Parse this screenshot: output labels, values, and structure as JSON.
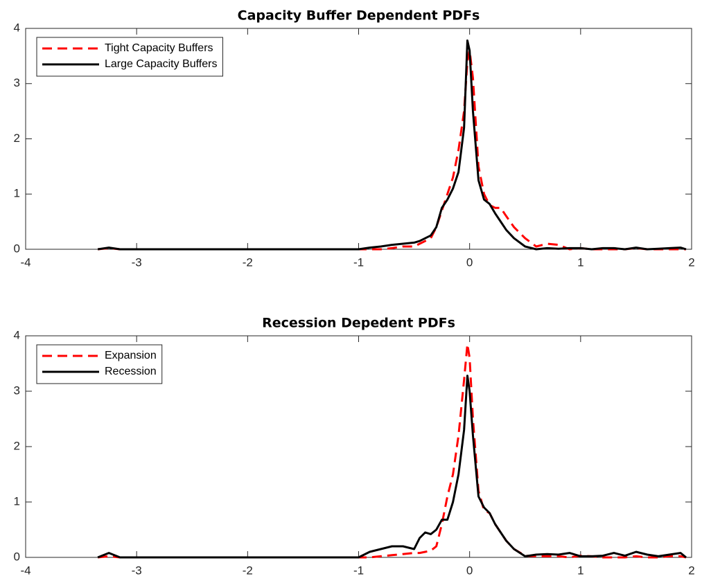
{
  "chart_data": [
    {
      "type": "line",
      "title": "Capacity Buffer Dependent PDFs",
      "x": [
        -3.35,
        -3.25,
        -3.15,
        -1.0,
        -0.9,
        -0.8,
        -0.7,
        -0.6,
        -0.5,
        -0.45,
        -0.4,
        -0.35,
        -0.3,
        -0.25,
        -0.2,
        -0.15,
        -0.1,
        -0.05,
        -0.02,
        0.0,
        0.03,
        0.08,
        0.13,
        0.18,
        0.23,
        0.28,
        0.33,
        0.4,
        0.5,
        0.6,
        0.7,
        0.8,
        0.9,
        1.0,
        1.1,
        1.2,
        1.3,
        1.4,
        1.5,
        1.6,
        1.7,
        1.8,
        1.9,
        1.95
      ],
      "series": [
        {
          "name": "Tight Capacity Buffers",
          "color": "#ff0000",
          "style": "dashed",
          "values": [
            0,
            0.02,
            0,
            0,
            0,
            0,
            0.02,
            0.05,
            0.05,
            0.1,
            0.15,
            0.2,
            0.4,
            0.7,
            1.0,
            1.3,
            1.8,
            2.5,
            3.4,
            3.6,
            3.1,
            1.5,
            1.0,
            0.8,
            0.75,
            0.75,
            0.6,
            0.4,
            0.2,
            0.05,
            0.1,
            0.08,
            0,
            0.02,
            0,
            0,
            0,
            0,
            0.02,
            0,
            0,
            0,
            0,
            0
          ]
        },
        {
          "name": "Large Capacity Buffers",
          "color": "#000000",
          "style": "solid",
          "values": [
            0,
            0.03,
            0,
            0,
            0.03,
            0.05,
            0.08,
            0.1,
            0.12,
            0.15,
            0.2,
            0.25,
            0.4,
            0.75,
            0.9,
            1.1,
            1.4,
            2.2,
            3.78,
            3.6,
            2.5,
            1.25,
            0.9,
            0.82,
            0.65,
            0.5,
            0.35,
            0.2,
            0.05,
            0,
            0.02,
            0.01,
            0.02,
            0.02,
            0,
            0.02,
            0.02,
            0,
            0.03,
            0,
            0.01,
            0.02,
            0.03,
            0
          ]
        }
      ],
      "xlim": [
        -4,
        2
      ],
      "xticks": [
        -4,
        -3,
        -2,
        -1,
        0,
        1,
        2
      ],
      "ylim": [
        0,
        4
      ],
      "yticks": [
        0,
        1,
        2,
        3,
        4
      ],
      "legend": "upper left"
    },
    {
      "type": "line",
      "title": "Recession Depedent PDFs",
      "x": [
        -3.35,
        -3.25,
        -3.15,
        -1.0,
        -0.9,
        -0.8,
        -0.7,
        -0.6,
        -0.5,
        -0.45,
        -0.4,
        -0.35,
        -0.3,
        -0.25,
        -0.2,
        -0.15,
        -0.1,
        -0.05,
        -0.02,
        0.0,
        0.03,
        0.08,
        0.13,
        0.18,
        0.23,
        0.28,
        0.33,
        0.4,
        0.5,
        0.6,
        0.7,
        0.8,
        0.9,
        1.0,
        1.1,
        1.2,
        1.3,
        1.4,
        1.5,
        1.6,
        1.7,
        1.8,
        1.9,
        1.95
      ],
      "series": [
        {
          "name": "Expansion",
          "color": "#ff0000",
          "style": "dashed",
          "values": [
            0,
            0.02,
            0,
            0,
            0,
            0.02,
            0.04,
            0.06,
            0.08,
            0.08,
            0.1,
            0.12,
            0.2,
            0.6,
            1.1,
            1.5,
            2.2,
            3.2,
            3.85,
            3.6,
            2.5,
            1.2,
            0.85,
            0.8,
            0.6,
            0.45,
            0.3,
            0.15,
            0.03,
            0.02,
            0.02,
            0.02,
            0,
            0.03,
            0.02,
            0,
            0,
            0,
            0.02,
            0,
            0,
            0.02,
            0.02,
            0
          ]
        },
        {
          "name": "Recession",
          "color": "#000000",
          "style": "solid",
          "values": [
            0,
            0.08,
            0,
            0,
            0.1,
            0.15,
            0.2,
            0.2,
            0.15,
            0.35,
            0.45,
            0.42,
            0.5,
            0.68,
            0.68,
            1.0,
            1.5,
            2.3,
            3.28,
            3.0,
            2.2,
            1.1,
            0.9,
            0.8,
            0.6,
            0.45,
            0.3,
            0.15,
            0.02,
            0.05,
            0.06,
            0.05,
            0.08,
            0.02,
            0.02,
            0.03,
            0.08,
            0.03,
            0.1,
            0.05,
            0.02,
            0.05,
            0.08,
            0
          ]
        }
      ],
      "xlim": [
        -4,
        2
      ],
      "xticks": [
        -4,
        -3,
        -2,
        -1,
        0,
        1,
        2
      ],
      "ylim": [
        0,
        4
      ],
      "yticks": [
        0,
        1,
        2,
        3,
        4
      ],
      "legend": "upper left"
    }
  ]
}
